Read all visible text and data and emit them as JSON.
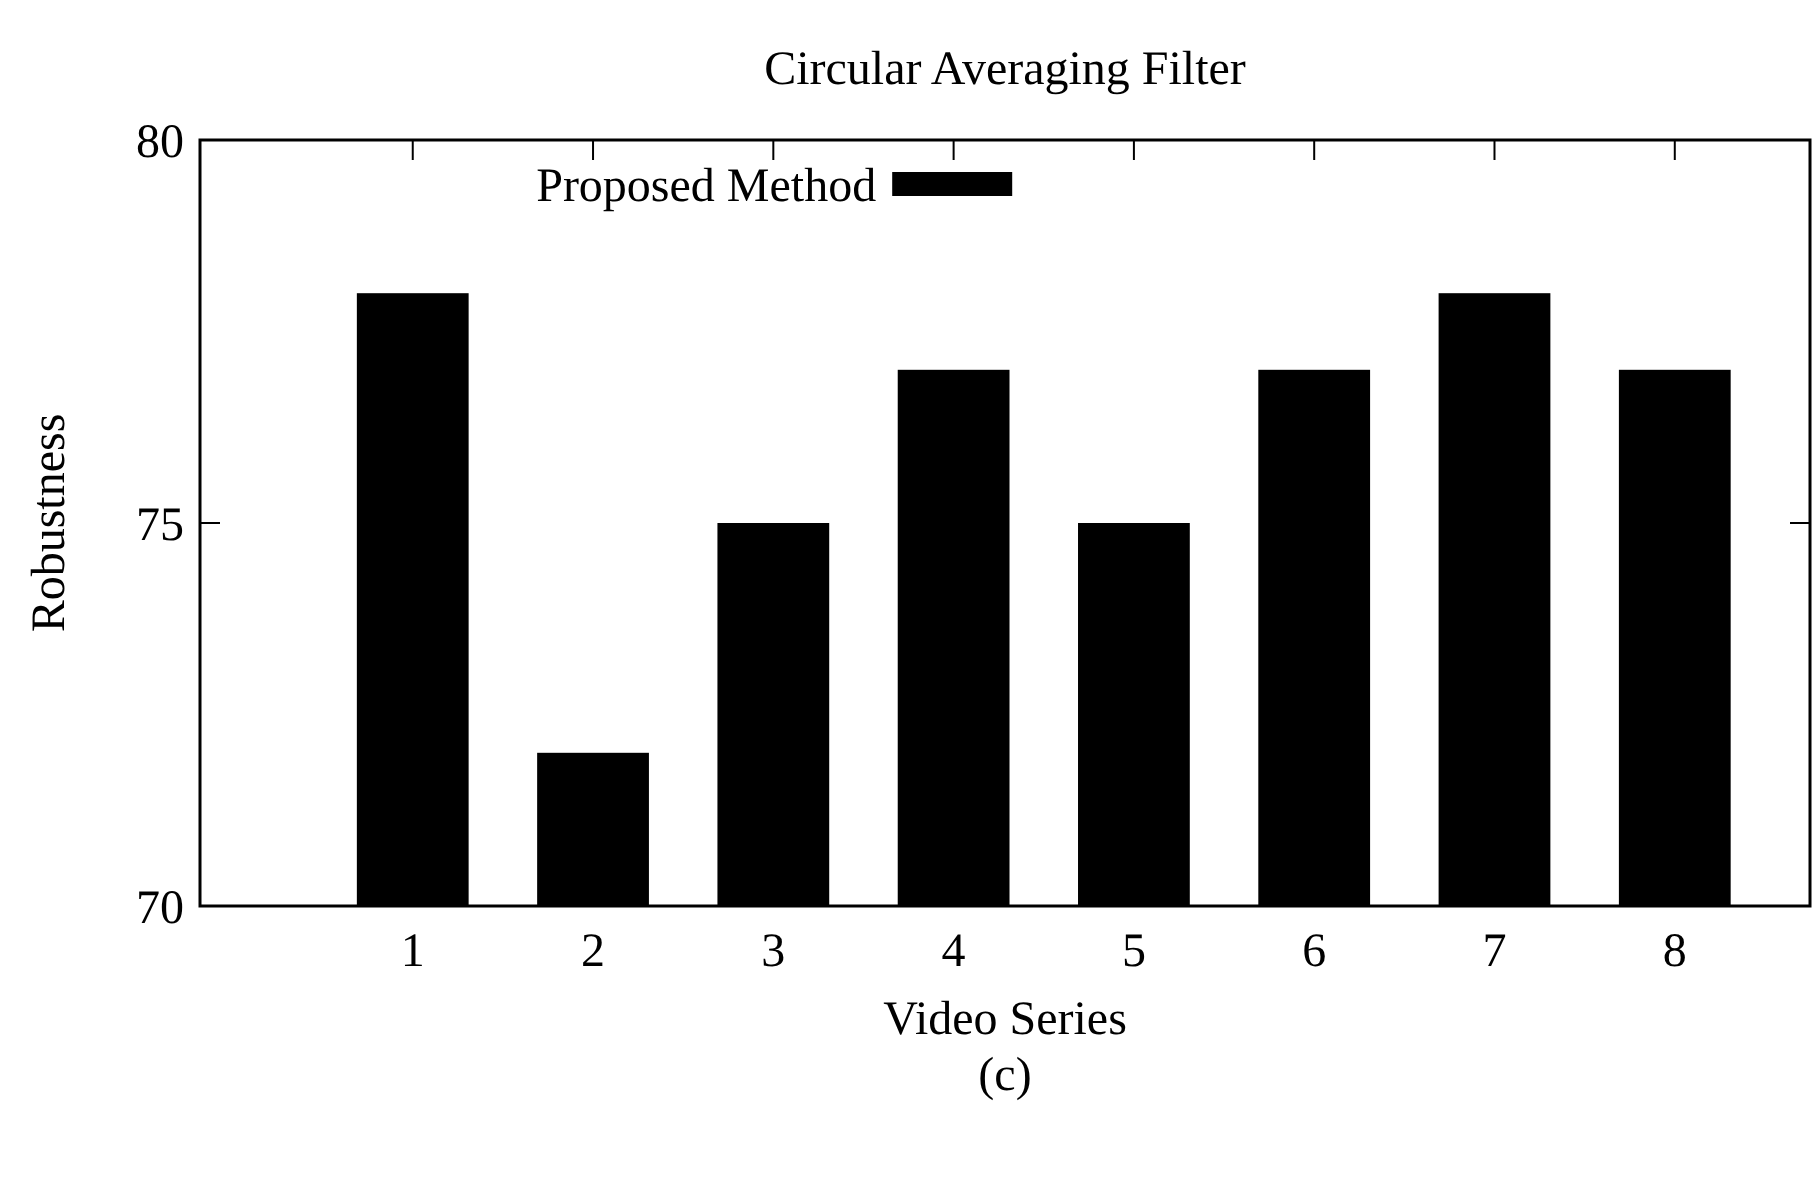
{
  "chart_data": {
    "type": "bar",
    "title": "Circular Averaging Filter",
    "xlabel": "Video Series",
    "ylabel": "Robustness",
    "annotations": [
      "(c)"
    ],
    "categories": [
      "1",
      "2",
      "3",
      "4",
      "5",
      "6",
      "7",
      "8"
    ],
    "series": [
      {
        "name": "Proposed Method",
        "color": "#000000",
        "values": [
          78,
          72,
          75,
          77,
          75,
          77,
          78,
          77
        ]
      }
    ],
    "ylim": [
      70,
      80
    ],
    "yticks": [
      70,
      75,
      80
    ],
    "legend": "top"
  }
}
